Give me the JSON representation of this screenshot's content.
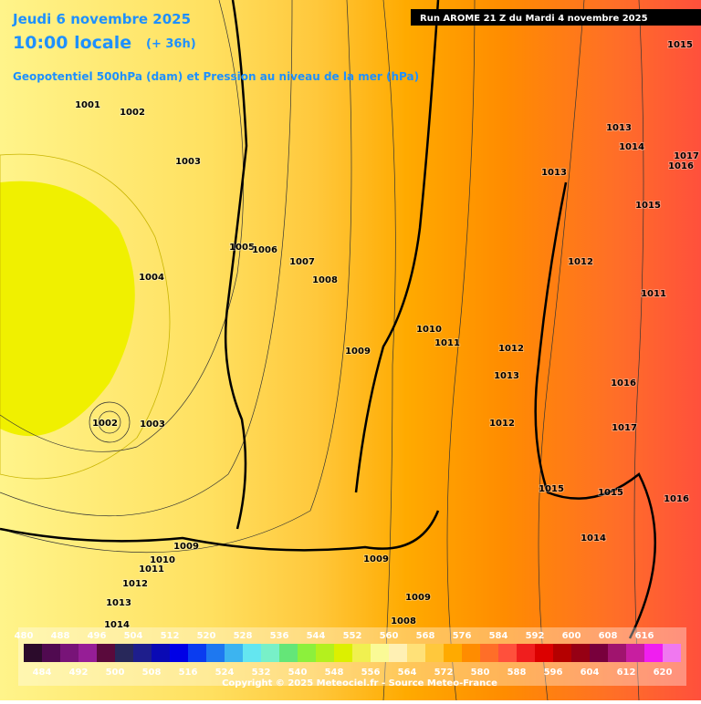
{
  "header": {
    "date": "Jeudi 6 novembre 2025",
    "time": "10:00 locale",
    "lead": "(+ 36h)",
    "product": "Geopotentiel 500hPa (dam) et Pression au niveau de la mer (hPa)",
    "run": "Run AROME 21 Z du Mardi 4 novembre 2025"
  },
  "isobar_labels": [
    1001,
    1002,
    1003,
    1005,
    1006,
    1007,
    1008,
    1004,
    1002,
    1003,
    1009,
    1010,
    1011,
    1012,
    1013,
    1012,
    1013,
    1013,
    1014,
    1017,
    1016,
    1015,
    1015,
    1012,
    1011,
    1016,
    1017,
    1015,
    1015,
    1016,
    1014,
    1009,
    1010,
    1011,
    1012,
    1013,
    1014,
    1009,
    1009,
    1008
  ],
  "colorbar": {
    "colors": [
      "#2b0b2b",
      "#500a50",
      "#781478",
      "#961e96",
      "#5a0a3c",
      "#28285a",
      "#1e1e8c",
      "#0a0ab4",
      "#0000e6",
      "#0a3cf0",
      "#1e78f0",
      "#3cb4f0",
      "#64e6f0",
      "#78f0c8",
      "#64e678",
      "#8cf03c",
      "#b4f01e",
      "#dcf000",
      "#f0f050",
      "#fafa96",
      "#fff0b4",
      "#ffe178",
      "#ffc83c",
      "#ffaa00",
      "#ff8c00",
      "#ff6e28",
      "#ff503c",
      "#f01e1e",
      "#dc0000",
      "#b40000",
      "#960014",
      "#78003c",
      "#a0146e",
      "#c81ea0",
      "#f01ef0",
      "#f078f0"
    ],
    "top_labels": [
      480,
      496,
      512,
      528,
      544,
      560,
      576,
      592,
      608
    ],
    "top_labels_mid": [
      488,
      504,
      520,
      536,
      552,
      568,
      584,
      600,
      616
    ],
    "bottom_labels": [
      484,
      492,
      500,
      508,
      516,
      524,
      532,
      540,
      548,
      556,
      564,
      572,
      580,
      588,
      596,
      604,
      612,
      620
    ]
  },
  "footer": "Copyright © 2025 Meteociel.fr - Source Meteo-France"
}
